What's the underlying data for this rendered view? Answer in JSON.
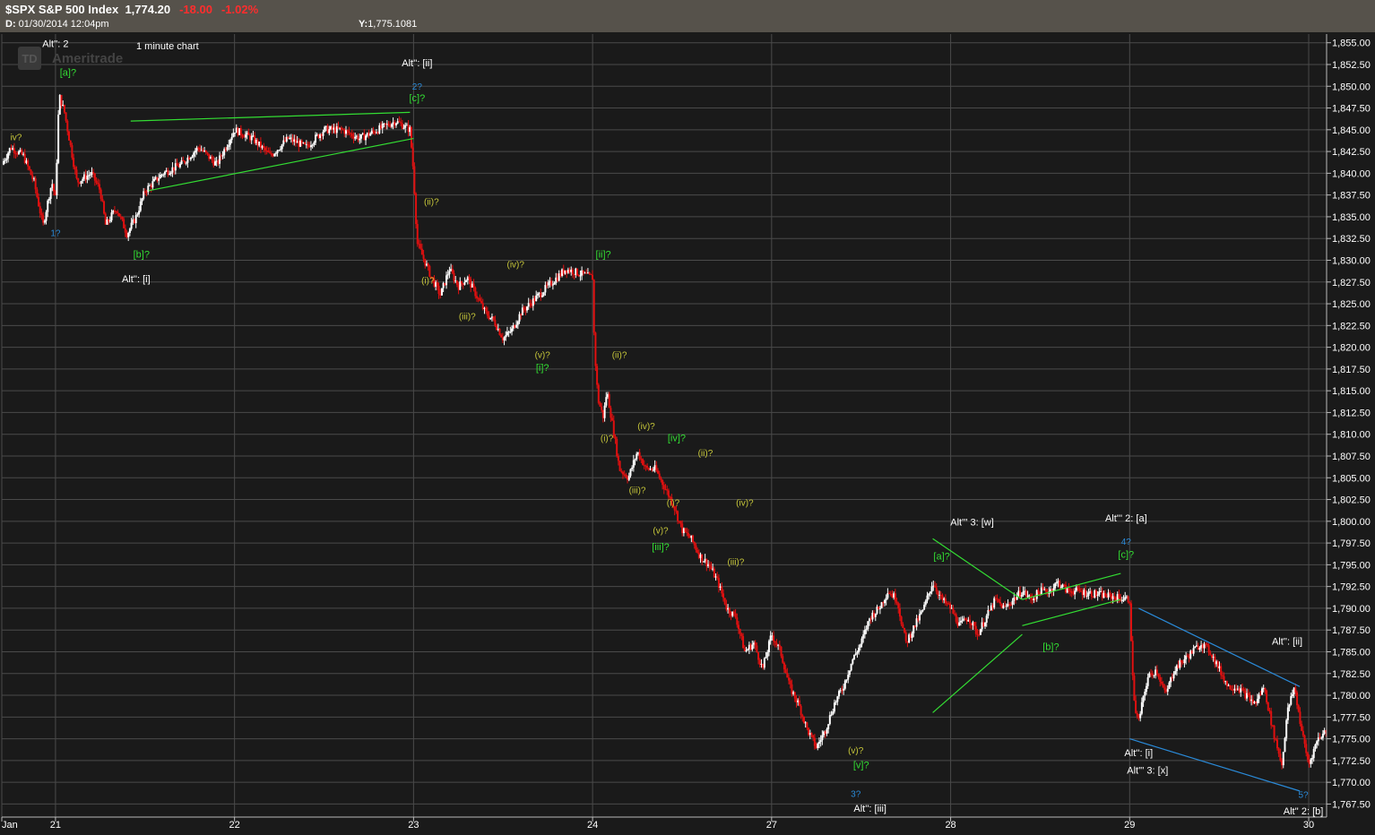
{
  "header": {
    "symbol": "$SPX S&P 500 Index",
    "last": "1,774.20",
    "change": "-18.00",
    "change_pct": "-1.02%",
    "date_label": "D:",
    "date": "01/30/2014  12:04pm",
    "y_label": "Y:",
    "y_value": "1,775.1081"
  },
  "watermark": "Ameritrade",
  "watermark_logo": "TD",
  "colors": {
    "bg": "#1a1a1a",
    "header": "#56524b",
    "grid": "#4a4a4a",
    "candle_up": "#ffffff",
    "candle_down": "#e01010",
    "green": "#33dd33",
    "blue": "#2a8ad8",
    "yellow": "#c7c73a",
    "white": "#ffffff"
  },
  "chart_data": {
    "type": "candlestick",
    "title": "1 minute chart",
    "xlabel": "",
    "ylabel": "",
    "grid": true,
    "ylim": [
      1766,
      1856
    ],
    "y_ticks": [
      1767.5,
      1770,
      1772.5,
      1775,
      1777.5,
      1780,
      1782.5,
      1785,
      1787.5,
      1790,
      1792.5,
      1795,
      1797.5,
      1800,
      1802.5,
      1805,
      1807.5,
      1810,
      1812.5,
      1815,
      1817.5,
      1820,
      1822.5,
      1825,
      1827.5,
      1830,
      1832.5,
      1835,
      1837.5,
      1840,
      1842.5,
      1845,
      1847.5,
      1850,
      1852.5,
      1855
    ],
    "y_tick_labels": [
      "1,767.50",
      "1,770.00",
      "1,772.50",
      "1,775.00",
      "1,777.50",
      "1,780.00",
      "1,782.50",
      "1,785.00",
      "1,787.50",
      "1,790.00",
      "1,792.50",
      "1,795.00",
      "1,797.50",
      "1,800.00",
      "1,802.50",
      "1,805.00",
      "1,807.50",
      "1,810.00",
      "1,812.50",
      "1,815.00",
      "1,817.50",
      "1,820.00",
      "1,822.50",
      "1,825.00",
      "1,827.50",
      "1,830.00",
      "1,832.50",
      "1,835.00",
      "1,837.50",
      "1,840.00",
      "1,842.50",
      "1,845.00",
      "1,847.50",
      "1,850.00",
      "1,852.50",
      "1,855.00"
    ],
    "x_range": [
      0,
      7.4
    ],
    "x_ticks": [
      0,
      0.3,
      1.3,
      2.3,
      3.3,
      4.3,
      5.3,
      6.3,
      7.3
    ],
    "x_tick_labels": [
      "Jan",
      "21",
      "22",
      "23",
      "24",
      "27",
      "28",
      "29",
      "30"
    ],
    "path": [
      [
        0.0,
        1841
      ],
      [
        0.05,
        1843
      ],
      [
        0.12,
        1842
      ],
      [
        0.18,
        1839
      ],
      [
        0.23,
        1834
      ],
      [
        0.28,
        1839
      ],
      [
        0.3,
        1837
      ],
      [
        0.32,
        1849
      ],
      [
        0.35,
        1847
      ],
      [
        0.42,
        1839
      ],
      [
        0.5,
        1840
      ],
      [
        0.55,
        1838
      ],
      [
        0.58,
        1834
      ],
      [
        0.64,
        1836
      ],
      [
        0.7,
        1833
      ],
      [
        0.75,
        1835
      ],
      [
        0.8,
        1838
      ],
      [
        0.9,
        1840
      ],
      [
        1.0,
        1841
      ],
      [
        1.1,
        1843
      ],
      [
        1.2,
        1841
      ],
      [
        1.3,
        1845
      ],
      [
        1.4,
        1844
      ],
      [
        1.5,
        1842
      ],
      [
        1.6,
        1844
      ],
      [
        1.7,
        1843
      ],
      [
        1.8,
        1845
      ],
      [
        1.9,
        1845
      ],
      [
        2.0,
        1844
      ],
      [
        2.1,
        1845
      ],
      [
        2.2,
        1846
      ],
      [
        2.28,
        1845
      ],
      [
        2.3,
        1840
      ],
      [
        2.32,
        1832
      ],
      [
        2.36,
        1830
      ],
      [
        2.4,
        1828
      ],
      [
        2.45,
        1826
      ],
      [
        2.5,
        1829
      ],
      [
        2.55,
        1827
      ],
      [
        2.6,
        1828
      ],
      [
        2.65,
        1826
      ],
      [
        2.7,
        1824
      ],
      [
        2.75,
        1823
      ],
      [
        2.8,
        1821
      ],
      [
        2.85,
        1822
      ],
      [
        2.9,
        1824
      ],
      [
        2.95,
        1825
      ],
      [
        3.0,
        1826
      ],
      [
        3.05,
        1827
      ],
      [
        3.1,
        1828
      ],
      [
        3.15,
        1829
      ],
      [
        3.3,
        1828
      ],
      [
        3.31,
        1820
      ],
      [
        3.33,
        1814
      ],
      [
        3.36,
        1812
      ],
      [
        3.38,
        1815
      ],
      [
        3.42,
        1810
      ],
      [
        3.45,
        1806
      ],
      [
        3.5,
        1805
      ],
      [
        3.55,
        1808
      ],
      [
        3.6,
        1806
      ],
      [
        3.65,
        1806
      ],
      [
        3.7,
        1804
      ],
      [
        3.75,
        1802
      ],
      [
        3.8,
        1799
      ],
      [
        3.85,
        1798
      ],
      [
        3.9,
        1796
      ],
      [
        3.95,
        1795
      ],
      [
        4.0,
        1793
      ],
      [
        4.05,
        1790
      ],
      [
        4.1,
        1789
      ],
      [
        4.15,
        1785
      ],
      [
        4.2,
        1786
      ],
      [
        4.25,
        1783
      ],
      [
        4.3,
        1787
      ],
      [
        4.35,
        1785
      ],
      [
        4.4,
        1781
      ],
      [
        4.45,
        1779
      ],
      [
        4.5,
        1776
      ],
      [
        4.55,
        1774
      ],
      [
        4.6,
        1776
      ],
      [
        4.65,
        1779
      ],
      [
        4.7,
        1781
      ],
      [
        4.75,
        1784
      ],
      [
        4.8,
        1786
      ],
      [
        4.85,
        1789
      ],
      [
        4.9,
        1790
      ],
      [
        4.95,
        1792
      ],
      [
        5.0,
        1791
      ],
      [
        5.05,
        1786
      ],
      [
        5.1,
        1788
      ],
      [
        5.15,
        1790
      ],
      [
        5.2,
        1793
      ],
      [
        5.25,
        1791
      ],
      [
        5.3,
        1790
      ],
      [
        5.35,
        1788
      ],
      [
        5.4,
        1789
      ],
      [
        5.45,
        1787
      ],
      [
        5.5,
        1789
      ],
      [
        5.55,
        1791
      ],
      [
        5.6,
        1790
      ],
      [
        5.65,
        1791
      ],
      [
        5.7,
        1792
      ],
      [
        5.75,
        1791
      ],
      [
        5.8,
        1792
      ],
      [
        5.85,
        1792
      ],
      [
        5.9,
        1793
      ],
      [
        5.95,
        1792
      ],
      [
        6.0,
        1792
      ],
      [
        6.3,
        1791
      ],
      [
        6.31,
        1785
      ],
      [
        6.33,
        1778
      ],
      [
        6.35,
        1777
      ],
      [
        6.4,
        1782
      ],
      [
        6.45,
        1783
      ],
      [
        6.5,
        1780
      ],
      [
        6.55,
        1783
      ],
      [
        6.6,
        1784
      ],
      [
        6.65,
        1785
      ],
      [
        6.7,
        1786
      ],
      [
        6.75,
        1785
      ],
      [
        6.8,
        1783
      ],
      [
        6.85,
        1781
      ],
      [
        6.9,
        1781
      ],
      [
        6.95,
        1780
      ],
      [
        7.0,
        1779
      ],
      [
        7.05,
        1781
      ],
      [
        7.1,
        1776
      ],
      [
        7.15,
        1772
      ],
      [
        7.18,
        1778
      ],
      [
        7.22,
        1781
      ],
      [
        7.26,
        1776
      ],
      [
        7.3,
        1772
      ],
      [
        7.35,
        1775
      ],
      [
        7.4,
        1776
      ]
    ],
    "trendlines": [
      {
        "color": "green",
        "points": [
          [
            0.72,
            1846
          ],
          [
            2.28,
            1847
          ]
        ]
      },
      {
        "color": "green",
        "points": [
          [
            0.82,
            1838
          ],
          [
            2.3,
            1844
          ]
        ]
      },
      {
        "color": "green",
        "points": [
          [
            5.2,
            1798
          ],
          [
            5.7,
            1791
          ]
        ]
      },
      {
        "color": "green",
        "points": [
          [
            5.2,
            1778
          ],
          [
            5.7,
            1787
          ]
        ]
      },
      {
        "color": "green",
        "points": [
          [
            5.7,
            1791
          ],
          [
            6.25,
            1794
          ]
        ]
      },
      {
        "color": "green",
        "points": [
          [
            5.7,
            1788
          ],
          [
            6.25,
            1791
          ]
        ]
      },
      {
        "color": "blue",
        "points": [
          [
            6.35,
            1790
          ],
          [
            7.25,
            1781
          ]
        ]
      },
      {
        "color": "blue",
        "points": [
          [
            6.3,
            1775
          ],
          [
            7.25,
            1769
          ]
        ]
      }
    ],
    "annotations": [
      {
        "text": "Alt'': 2",
        "x": 0.3,
        "y": 1854.5,
        "color": "white"
      },
      {
        "text": "[a]?",
        "x": 0.37,
        "y": 1851.2,
        "color": "green"
      },
      {
        "text": "iv?",
        "x": 0.08,
        "y": 1843.8,
        "color": "yellow"
      },
      {
        "text": "1?",
        "x": 0.3,
        "y": 1832.8,
        "color": "blue"
      },
      {
        "text": "[b]?",
        "x": 0.78,
        "y": 1830.3,
        "color": "green"
      },
      {
        "text": "Alt'': [i]",
        "x": 0.75,
        "y": 1827.5,
        "color": "white"
      },
      {
        "text": "Alt'': [ii]",
        "x": 2.32,
        "y": 1852.3,
        "color": "white"
      },
      {
        "text": "2?",
        "x": 2.32,
        "y": 1849.6,
        "color": "blue"
      },
      {
        "text": "[c]?",
        "x": 2.32,
        "y": 1848.3,
        "color": "green"
      },
      {
        "text": "(ii)?",
        "x": 2.4,
        "y": 1836.4,
        "color": "yellow"
      },
      {
        "text": "(i)?",
        "x": 2.38,
        "y": 1827.3,
        "color": "yellow"
      },
      {
        "text": "(iii)?",
        "x": 2.6,
        "y": 1823.2,
        "color": "yellow"
      },
      {
        "text": "(iv)?",
        "x": 2.87,
        "y": 1829.2,
        "color": "yellow"
      },
      {
        "text": "(v)?",
        "x": 3.02,
        "y": 1818.8,
        "color": "yellow"
      },
      {
        "text": "[i]?",
        "x": 3.02,
        "y": 1817.3,
        "color": "green"
      },
      {
        "text": "[ii]?",
        "x": 3.36,
        "y": 1830.3,
        "color": "green"
      },
      {
        "text": "(ii)?",
        "x": 3.45,
        "y": 1818.8,
        "color": "yellow"
      },
      {
        "text": "(i)?",
        "x": 3.38,
        "y": 1809.2,
        "color": "yellow"
      },
      {
        "text": "(iv)?",
        "x": 3.6,
        "y": 1810.6,
        "color": "yellow"
      },
      {
        "text": "[iv]?",
        "x": 3.77,
        "y": 1809.2,
        "color": "green"
      },
      {
        "text": "(ii)?",
        "x": 3.93,
        "y": 1807.5,
        "color": "yellow"
      },
      {
        "text": "(iii)?",
        "x": 3.55,
        "y": 1803.2,
        "color": "yellow"
      },
      {
        "text": "(i)?",
        "x": 3.75,
        "y": 1801.8,
        "color": "yellow"
      },
      {
        "text": "(v)?",
        "x": 3.68,
        "y": 1798.6,
        "color": "yellow"
      },
      {
        "text": "[iii]?",
        "x": 3.68,
        "y": 1796.7,
        "color": "green"
      },
      {
        "text": "(iv)?",
        "x": 4.15,
        "y": 1801.8,
        "color": "yellow"
      },
      {
        "text": "(iii)?",
        "x": 4.1,
        "y": 1795.0,
        "color": "yellow"
      },
      {
        "text": "(v)?",
        "x": 4.77,
        "y": 1773.3,
        "color": "yellow"
      },
      {
        "text": "[v]?",
        "x": 4.8,
        "y": 1771.6,
        "color": "green"
      },
      {
        "text": "3?",
        "x": 4.77,
        "y": 1768.3,
        "color": "blue"
      },
      {
        "text": "Alt'': [iii]",
        "x": 4.85,
        "y": 1766.6,
        "color": "white"
      },
      {
        "text": "Alt''' 3: [w]",
        "x": 5.42,
        "y": 1799.5,
        "color": "white"
      },
      {
        "text": "[a]?",
        "x": 5.25,
        "y": 1795.6,
        "color": "green"
      },
      {
        "text": "[b]?",
        "x": 5.86,
        "y": 1785.2,
        "color": "green"
      },
      {
        "text": "Alt''' 2: [a]",
        "x": 6.28,
        "y": 1800.0,
        "color": "white"
      },
      {
        "text": "4?",
        "x": 6.28,
        "y": 1797.3,
        "color": "blue"
      },
      {
        "text": "[c]?",
        "x": 6.28,
        "y": 1795.8,
        "color": "green"
      },
      {
        "text": "Alt'': [ii]",
        "x": 7.18,
        "y": 1785.8,
        "color": "white"
      },
      {
        "text": "Alt'': [i]",
        "x": 6.35,
        "y": 1773.0,
        "color": "white"
      },
      {
        "text": "Alt''' 3: [x]",
        "x": 6.4,
        "y": 1771.0,
        "color": "white"
      },
      {
        "text": "5?",
        "x": 7.27,
        "y": 1768.2,
        "color": "blue"
      },
      {
        "text": "Alt'' 2: [b]",
        "x": 7.27,
        "y": 1766.3,
        "color": "white"
      }
    ]
  }
}
